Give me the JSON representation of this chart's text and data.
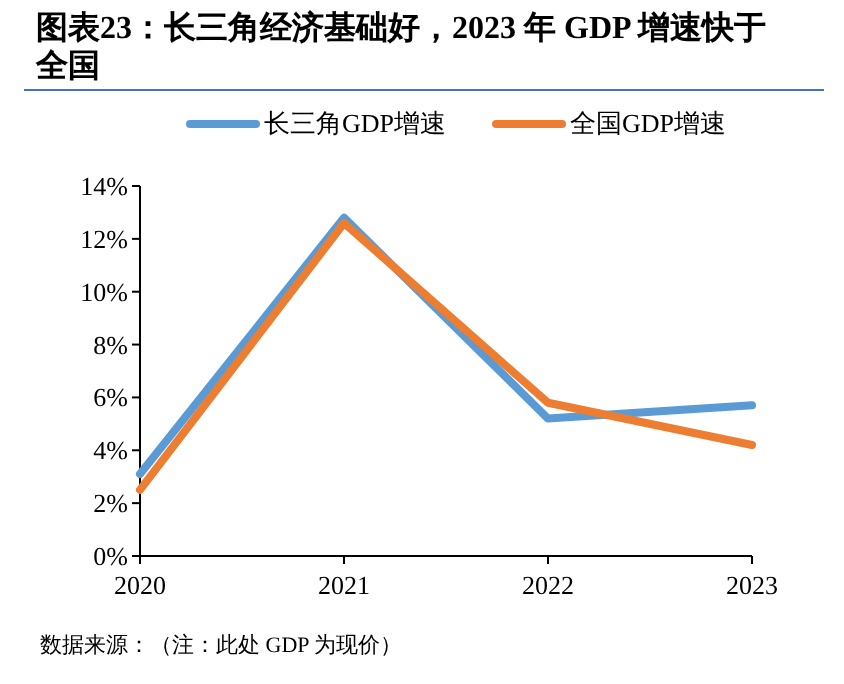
{
  "chart_data": {
    "type": "line",
    "title": "图表23：长三角经济基础好，2023 年 GDP 增速快于全国",
    "categories": [
      "2020",
      "2021",
      "2022",
      "2023"
    ],
    "series": [
      {
        "name": "长三角GDP增速",
        "color": "#5b9bd5",
        "values": [
          3.1,
          12.8,
          5.2,
          5.7
        ]
      },
      {
        "name": "全国GDP增速",
        "color": "#ed7d31",
        "values": [
          2.5,
          12.6,
          5.8,
          4.2
        ]
      }
    ],
    "ylim": [
      0,
      14
    ],
    "yticks": [
      {
        "value": 0,
        "label": "0%"
      },
      {
        "value": 2,
        "label": "2%"
      },
      {
        "value": 4,
        "label": "4%"
      },
      {
        "value": 6,
        "label": "6%"
      },
      {
        "value": 8,
        "label": "8%"
      },
      {
        "value": 10,
        "label": "10%"
      },
      {
        "value": 12,
        "label": "12%"
      },
      {
        "value": 14,
        "label": "14%"
      }
    ],
    "legend": "top",
    "grid": false,
    "marker": "none",
    "line_style": "solid",
    "annotations": [
      "数据来源：（注：此处 GDP 为现价）"
    ]
  }
}
